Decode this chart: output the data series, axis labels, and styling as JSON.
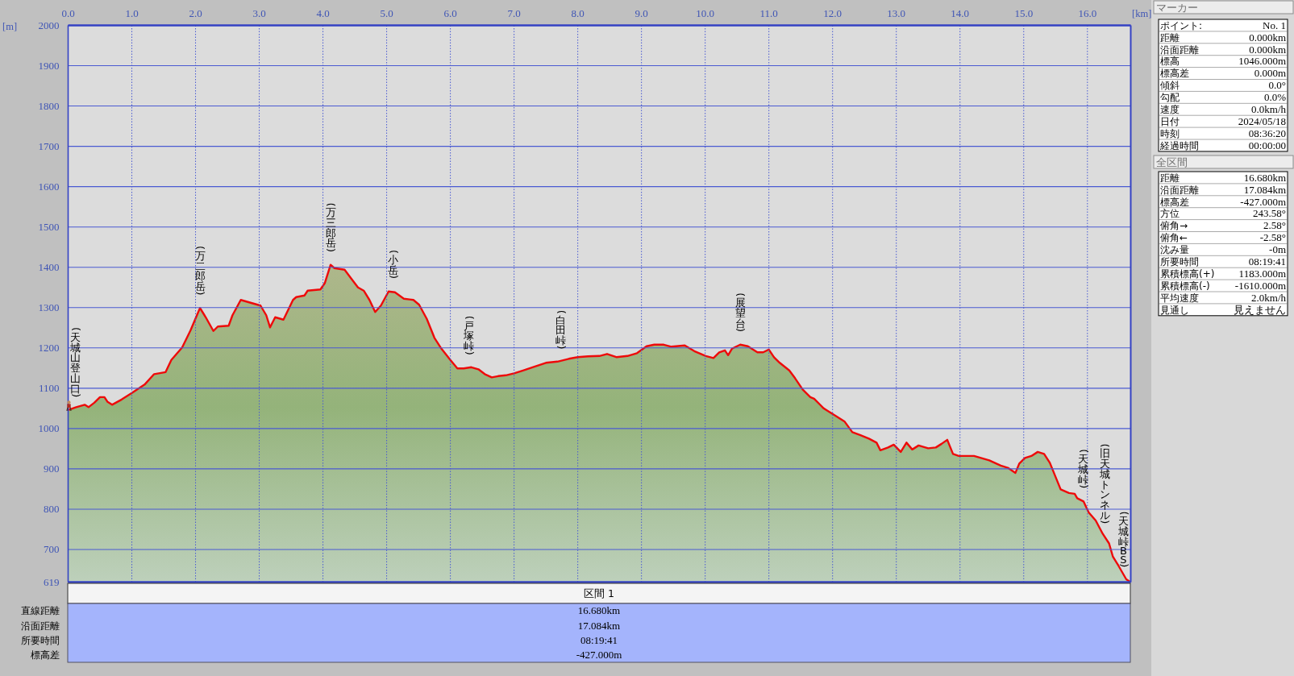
{
  "chart_data": [
    {
      "type": "area",
      "xlabel": "[km]",
      "ylabel": "[m]",
      "color": "#ee0a0a",
      "line_style": "solid",
      "grid": true,
      "xlim": [
        0,
        16.68
      ],
      "ylim": [
        619,
        2000
      ],
      "xticks": [
        {
          "value": 0,
          "label": "0.0"
        },
        {
          "value": 1,
          "label": "1.0"
        },
        {
          "value": 2,
          "label": "2.0"
        },
        {
          "value": 3,
          "label": "3.0"
        },
        {
          "value": 4,
          "label": "4.0"
        },
        {
          "value": 5,
          "label": "5.0"
        },
        {
          "value": 6,
          "label": "6.0"
        },
        {
          "value": 7,
          "label": "7.0"
        },
        {
          "value": 8,
          "label": "8.0"
        },
        {
          "value": 9,
          "label": "9.0"
        },
        {
          "value": 10,
          "label": "10.0"
        },
        {
          "value": 11,
          "label": "11.0"
        },
        {
          "value": 12,
          "label": "12.0"
        },
        {
          "value": 13,
          "label": "13.0"
        },
        {
          "value": 14,
          "label": "14.0"
        },
        {
          "value": 15,
          "label": "15.0"
        },
        {
          "value": 16,
          "label": "16.0"
        }
      ],
      "yticks": [
        619,
        700,
        800,
        900,
        1000,
        1100,
        1200,
        1300,
        1400,
        1500,
        1600,
        1700,
        1800,
        1900,
        2000
      ],
      "x": [
        0,
        0.126,
        0.26,
        0.32,
        0.41,
        0.5,
        0.57,
        0.62,
        0.69,
        0.84,
        1.0,
        1.2,
        1.35,
        1.53,
        1.62,
        1.79,
        1.92,
        2.07,
        2.16,
        2.28,
        2.35,
        2.52,
        2.58,
        2.71,
        2.82,
        3.02,
        3.11,
        3.17,
        3.25,
        3.38,
        3.53,
        3.58,
        3.71,
        3.76,
        3.96,
        4.03,
        4.12,
        4.18,
        4.34,
        4.43,
        4.55,
        4.64,
        4.73,
        4.82,
        4.91,
        5.03,
        5.13,
        5.27,
        5.42,
        5.51,
        5.63,
        5.75,
        5.86,
        6.0,
        6.11,
        6.21,
        6.33,
        6.44,
        6.54,
        6.65,
        6.75,
        6.87,
        7.0,
        7.14,
        7.29,
        7.5,
        7.68,
        7.86,
        8.0,
        8.16,
        8.34,
        8.46,
        8.61,
        8.78,
        8.93,
        9.08,
        9.2,
        9.35,
        9.47,
        9.68,
        9.83,
        10.01,
        10.13,
        10.22,
        10.31,
        10.36,
        10.42,
        10.55,
        10.67,
        10.82,
        10.91,
        11.0,
        11.08,
        11.17,
        11.32,
        11.41,
        11.53,
        11.65,
        11.71,
        11.86,
        12.0,
        12.19,
        12.31,
        12.43,
        12.57,
        12.69,
        12.75,
        12.87,
        12.96,
        13.07,
        13.16,
        13.25,
        13.35,
        13.5,
        13.62,
        13.71,
        13.8,
        13.89,
        13.98,
        14.22,
        14.46,
        14.64,
        14.76,
        14.87,
        14.93,
        15.02,
        15.12,
        15.22,
        15.32,
        15.41,
        15.5,
        15.58,
        15.71,
        15.8,
        15.84,
        15.94,
        16.02,
        16.13,
        16.24,
        16.34,
        16.4,
        16.49,
        16.61,
        16.68
      ],
      "values": [
        1046,
        1053,
        1059,
        1053,
        1064,
        1078,
        1078,
        1066,
        1059,
        1072,
        1088,
        1109,
        1135,
        1140,
        1170,
        1201,
        1243,
        1299,
        1276,
        1242,
        1253,
        1255,
        1281,
        1319,
        1314,
        1305,
        1281,
        1251,
        1276,
        1270,
        1319,
        1326,
        1330,
        1342,
        1345,
        1361,
        1406,
        1398,
        1394,
        1375,
        1350,
        1342,
        1319,
        1289,
        1305,
        1340,
        1338,
        1322,
        1319,
        1307,
        1272,
        1225,
        1198,
        1170,
        1149,
        1149,
        1152,
        1147,
        1135,
        1127,
        1130,
        1132,
        1137,
        1144,
        1152,
        1163,
        1166,
        1173,
        1177,
        1179,
        1180,
        1185,
        1177,
        1180,
        1187,
        1204,
        1208,
        1208,
        1203,
        1206,
        1192,
        1180,
        1175,
        1189,
        1194,
        1182,
        1198,
        1208,
        1204,
        1189,
        1189,
        1196,
        1177,
        1163,
        1144,
        1125,
        1097,
        1078,
        1074,
        1050,
        1036,
        1017,
        991,
        984,
        975,
        965,
        946,
        953,
        960,
        942,
        965,
        948,
        958,
        951,
        953,
        962,
        972,
        937,
        932,
        932,
        921,
        908,
        902,
        890,
        913,
        927,
        932,
        942,
        937,
        915,
        880,
        849,
        840,
        838,
        827,
        819,
        792,
        772,
        739,
        715,
        682,
        659,
        626,
        619
      ],
      "annotations": [
        {
          "text": "(天城山登山口)",
          "x": 0,
          "y": 1046
        },
        {
          "text": "(万二郎岳)",
          "x": 2.07,
          "y": 1299
        },
        {
          "text": "(万三郎岳)",
          "x": 4.12,
          "y": 1406
        },
        {
          "text": "(小岳)",
          "x": 5.1,
          "y": 1340
        },
        {
          "text": "(戸塚峠)",
          "x": 6.29,
          "y": 1151
        },
        {
          "text": "(白田峠)",
          "x": 7.73,
          "y": 1165
        },
        {
          "text": "(展望台)",
          "x": 10.55,
          "y": 1208
        },
        {
          "text": "(天城峠)",
          "x": 15.93,
          "y": 820
        },
        {
          "text": "(旧天城トンネル)",
          "x": 16.27,
          "y": 732
        },
        {
          "text": "(天城峠BS)",
          "x": 16.63,
          "y": 624
        }
      ]
    },
    {
      "type": "other",
      "title": "マーカー",
      "annotations": [
        "ポイント:",
        "No. 1",
        "距離",
        "0.000km",
        "沿面距離",
        "0.000km",
        "標高",
        "1046.000m",
        "標高差",
        "0.000m",
        "傾斜",
        "0.0°",
        "勾配",
        "0.0%",
        "速度",
        "0.0km/h",
        "日付",
        "2024/05/18",
        "時刻",
        "08:36:20",
        "経過時間",
        "00:00:00"
      ]
    },
    {
      "type": "other",
      "title": "全区間",
      "annotations": [
        "距離",
        "16.680km",
        "沿面距離",
        "17.084km",
        "標高差",
        "-427.000m",
        "方位",
        "243.58°",
        "俯角→",
        "2.58°",
        "俯角←",
        "-2.58°",
        "沈み量",
        "-0m",
        "所要時間",
        "08:19:41",
        "累積標高(+)",
        "1183.000m",
        "累積標高(-)",
        "-1610.000m",
        "平均速度",
        "2.0km/h",
        "見通し",
        "見えません"
      ]
    },
    {
      "type": "other",
      "title": "区間 1",
      "annotations": [
        "直線距離",
        "16.680km",
        "沿面距離",
        "17.084km",
        "所要時間",
        "08:19:41",
        "標高差",
        "-427.000m"
      ]
    }
  ]
}
